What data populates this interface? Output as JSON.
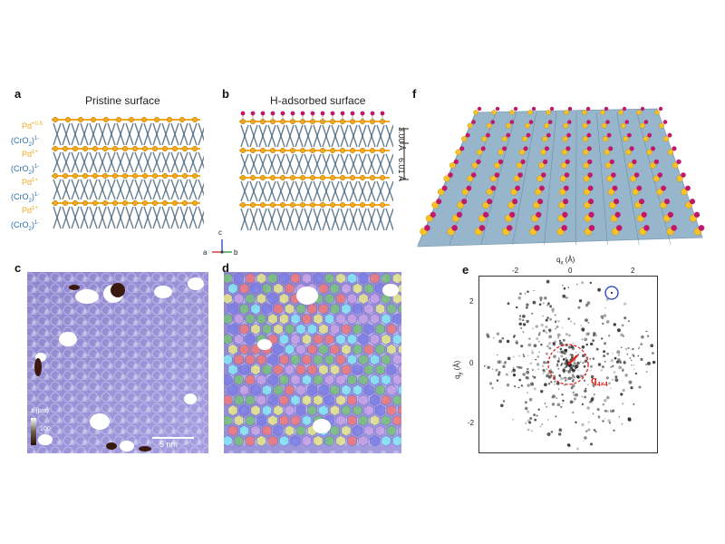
{
  "panels": {
    "a": {
      "letter": "a",
      "title": "Pristine surface"
    },
    "b": {
      "letter": "b",
      "title": "H-adsorbed surface"
    },
    "c": {
      "letter": "c"
    },
    "d": {
      "letter": "d"
    },
    "e": {
      "letter": "e"
    },
    "f": {
      "letter": "f"
    }
  },
  "layer_labels": [
    {
      "base": "Pd",
      "sup": "+0.5",
      "kind": "pd"
    },
    {
      "base": "(CrO",
      "sub": "2",
      "close": ")",
      "sup": "1-",
      "kind": "cro"
    },
    {
      "base": "Pd",
      "sup": "1+",
      "kind": "pd"
    },
    {
      "base": "(CrO",
      "sub": "2",
      "close": ")",
      "sup": "1-",
      "kind": "cro"
    },
    {
      "base": "Pd",
      "sup": "1+",
      "kind": "pd"
    },
    {
      "base": "(CrO",
      "sub": "2",
      "close": ")",
      "sup": "1-",
      "kind": "cro"
    },
    {
      "base": "Pd",
      "sup": "1+",
      "kind": "pd"
    },
    {
      "base": "(CrO",
      "sub": "2",
      "close": ")",
      "sup": "1-",
      "kind": "cro"
    }
  ],
  "dimensions": {
    "top": "3.00 Å",
    "bottom": "6.01 Å"
  },
  "axes_triad": {
    "c": "c",
    "a": "a",
    "b": "b"
  },
  "stm": {
    "colorbar_label": "z (pm)",
    "colorbar_max": "100",
    "colorbar_min": "0",
    "scale_bar": "5 nm"
  },
  "fft": {
    "x_label": "q",
    "x_sub": "x",
    "x_unit": " (Å)",
    "y_label": "q",
    "y_sub": "y",
    "y_unit": " (Å)",
    "x_ticks": [
      "-2",
      "0",
      "2"
    ],
    "y_ticks": [
      "2",
      "0",
      "-2"
    ],
    "q_label": "q",
    "q_sub": "4×4"
  },
  "colors": {
    "pd": "#f2a91e",
    "cro": "#2f6fa8",
    "chain": "#4d6a80",
    "hydrogen": "#c2186b",
    "slab": "#7ea4bf",
    "stm": "#9a92d8",
    "fft_red": "#e0241b",
    "fft_blue": "#1d3fbf"
  }
}
